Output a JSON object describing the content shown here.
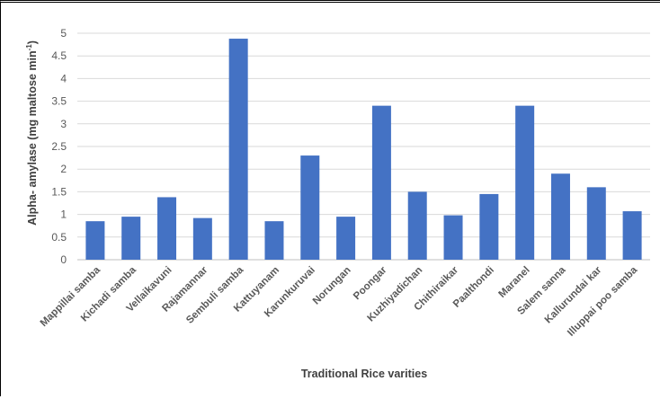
{
  "chart_data": {
    "type": "bar",
    "title": "",
    "xlabel": "Traditional Rice varities",
    "ylabel_main": "Alpha- amylase (mg maltose min",
    "ylabel_sup": "-1",
    "ylabel_tail": ")",
    "ylim": [
      0,
      5
    ],
    "yticks": [
      "0",
      "0.5",
      "1",
      "1.5",
      "2",
      "2.5",
      "3",
      "3.5",
      "4",
      "4.5",
      "5"
    ],
    "grid": true,
    "bar_color": "#4472C4",
    "categories": [
      "Mappillai samba",
      "Kichadi samba",
      "Vellaikavuni",
      "Rajamannar",
      "Sembuli samba",
      "Kattuyanam",
      "Karunkuruvai",
      "Norungan",
      "Poongar",
      "Kuzhiyadichan",
      "Chithiraikar",
      "Paalthondi",
      "Maranel",
      "Salem sanna",
      "Kallurundai kar",
      "Illuppai poo samba"
    ],
    "values": [
      0.85,
      0.95,
      1.38,
      0.92,
      4.88,
      0.85,
      2.3,
      0.95,
      3.4,
      1.5,
      0.98,
      1.45,
      3.4,
      1.9,
      1.6,
      1.07
    ]
  }
}
